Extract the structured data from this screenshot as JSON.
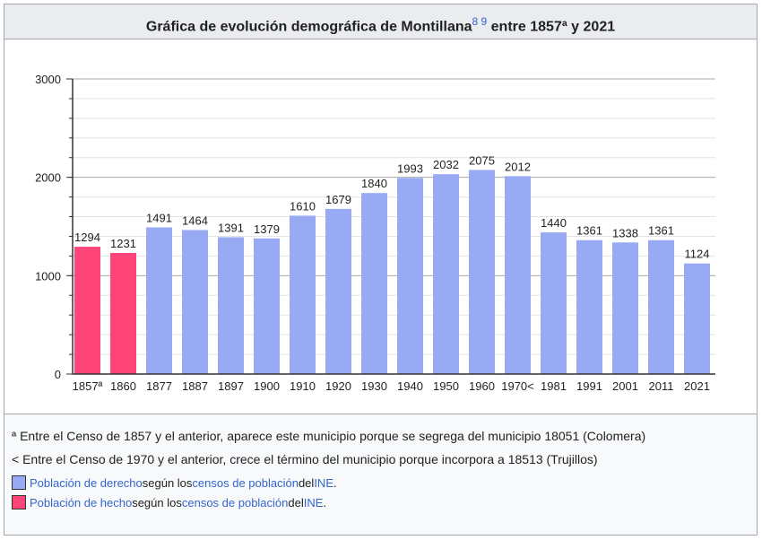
{
  "title": {
    "main": "Gráfica de evolución demográfica de Montillana",
    "refs": "8 9",
    "rest": " entre 1857ª y 2021"
  },
  "colors": {
    "derecho": "#99aaf5",
    "hecho": "#ff4477"
  },
  "chart_data": {
    "type": "bar",
    "categories": [
      "1857ª",
      "1860",
      "1877",
      "1887",
      "1897",
      "1900",
      "1910",
      "1920",
      "1930",
      "1940",
      "1950",
      "1960",
      "1970<",
      "1981",
      "1991",
      "2001",
      "2011",
      "2021"
    ],
    "values": [
      1294,
      1231,
      1491,
      1464,
      1391,
      1379,
      1610,
      1679,
      1840,
      1993,
      2032,
      2075,
      2012,
      1440,
      1361,
      1338,
      1361,
      1124
    ],
    "series_type": [
      "hecho",
      "hecho",
      "derecho",
      "derecho",
      "derecho",
      "derecho",
      "derecho",
      "derecho",
      "derecho",
      "derecho",
      "derecho",
      "derecho",
      "derecho",
      "derecho",
      "derecho",
      "derecho",
      "derecho",
      "derecho"
    ],
    "ylim": [
      0,
      3000
    ],
    "yticks": [
      0,
      1000,
      2000,
      3000
    ],
    "minor_grid_step": 200,
    "grid": true
  },
  "notes": [
    "ª Entre el Censo de 1857 y el anterior, aparece este municipio porque se segrega del municipio 18051 (Colomera)",
    "< Entre el Censo de 1970 y el anterior, crece el término del municipio porque incorpora a 18513 (Trujillos)"
  ],
  "legend": [
    {
      "link1": "Población de derecho",
      "t1": " según los ",
      "link2": "censos de población",
      "t2": " del ",
      "link3": "INE",
      "t3": "."
    },
    {
      "link1": "Población de hecho",
      "t1": " según los ",
      "link2": "censos de población",
      "t2": " del ",
      "link3": "INE",
      "t3": "."
    }
  ]
}
